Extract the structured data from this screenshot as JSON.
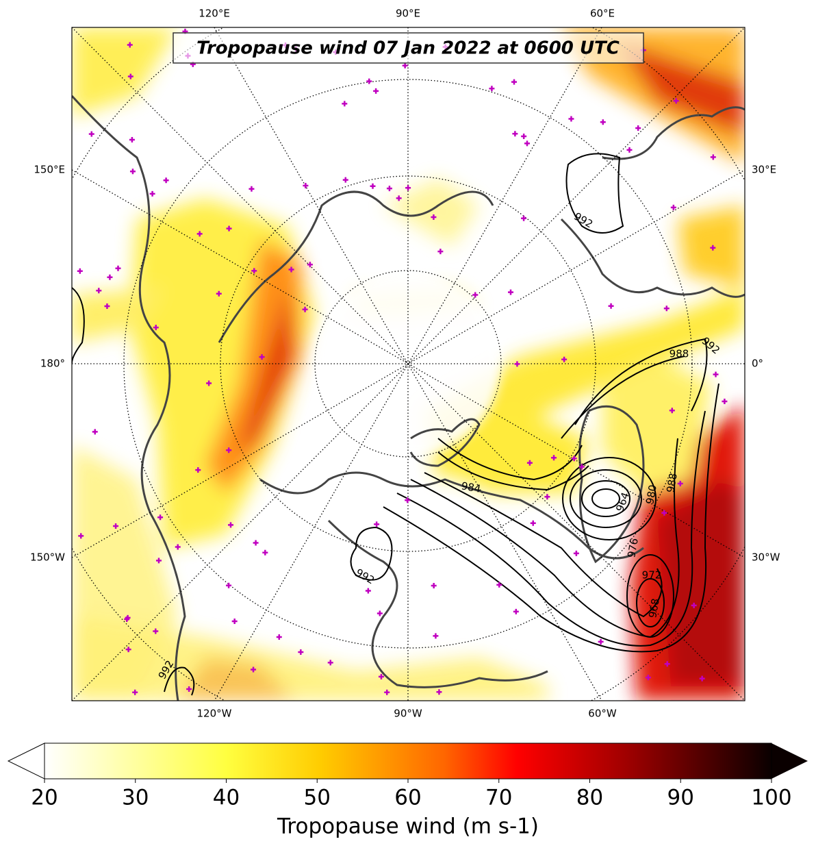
{
  "map": {
    "title": "Tropopause wind 07 Jan 2022 at 0600 UTC",
    "longitude_labels": {
      "top": [
        "120°E",
        "90°E",
        "60°E"
      ],
      "left": [
        "150°E",
        "180°",
        "150°W"
      ],
      "right": [
        "30°E",
        "0°",
        "30°W"
      ],
      "bottom": [
        "120°W",
        "90°W",
        "60°W"
      ]
    },
    "contour_labels": [
      992,
      992,
      988,
      984,
      980,
      988,
      964,
      976,
      972,
      968,
      992,
      992
    ]
  },
  "colorbar": {
    "label": "Tropopause wind (m s-1)",
    "lim": [
      20,
      100
    ],
    "ticks": [
      20,
      30,
      40,
      50,
      60,
      70,
      80,
      90,
      100
    ]
  }
}
